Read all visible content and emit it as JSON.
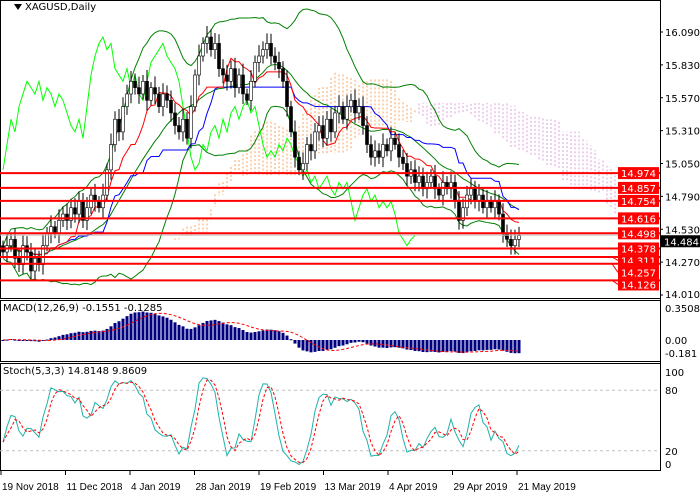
{
  "header": {
    "symbol_title": "XAGUSD,Daily"
  },
  "chart_data": [
    {
      "type": "candlestick",
      "title": "XAGUSD,Daily",
      "ylim": [
        14.01,
        16.09
      ],
      "y_ticks": [
        "16.090",
        "15.830",
        "15.570",
        "15.310",
        "15.050",
        "14.790",
        "14.530",
        "14.270",
        "14.010"
      ],
      "current_price": "14.484",
      "levels": [
        "14.974",
        "14.857",
        "14.754",
        "14.616",
        "14.498",
        "14.378",
        "14.311",
        "14.257",
        "14.126"
      ],
      "level_color": "#ff0000",
      "x_ticks": [
        "19 Nov 2018",
        "11 Dec 2018",
        "4 Jan 2019",
        "28 Jan 2019",
        "19 Feb 2019",
        "13 Mar 2019",
        "4 Apr 2019",
        "29 Apr 2019",
        "21 May 2019"
      ],
      "indicators": [
        "Bollinger Bands (green)",
        "Ichimoku cloud (orange/violet dotted)",
        "Tenkan (red)",
        "Kijun (blue)"
      ],
      "close": [
        14.35,
        14.4,
        14.45,
        14.3,
        14.25,
        14.4,
        14.35,
        14.2,
        14.3,
        14.25,
        14.4,
        14.5,
        14.55,
        14.5,
        14.6,
        14.65,
        14.6,
        14.7,
        14.65,
        14.75,
        14.6,
        14.7,
        14.8,
        14.75,
        14.7,
        14.8,
        15.0,
        15.2,
        15.4,
        15.3,
        15.5,
        15.6,
        15.7,
        15.65,
        15.6,
        15.7,
        15.55,
        15.65,
        15.6,
        15.5,
        15.6,
        15.55,
        15.45,
        15.35,
        15.3,
        15.4,
        15.25,
        15.5,
        15.75,
        15.9,
        16.0,
        16.05,
        15.95,
        16.0,
        15.8,
        15.75,
        15.7,
        15.8,
        15.65,
        15.75,
        15.6,
        15.55,
        15.7,
        15.85,
        15.9,
        15.95,
        16.0,
        15.9,
        15.85,
        15.8,
        15.7,
        15.5,
        15.3,
        15.1,
        15.0,
        15.05,
        15.2,
        15.15,
        15.3,
        15.35,
        15.25,
        15.4,
        15.3,
        15.45,
        15.5,
        15.4,
        15.5,
        15.55,
        15.45,
        15.5,
        15.35,
        15.2,
        15.1,
        15.15,
        15.1,
        15.2,
        15.15,
        15.25,
        15.2,
        15.1,
        15.05,
        14.95,
        15.0,
        14.9,
        14.95,
        14.85,
        14.9,
        14.95,
        14.85,
        14.8,
        14.9,
        14.85,
        14.9,
        14.75,
        14.6,
        14.7,
        14.8,
        14.85,
        14.75,
        14.8,
        14.7,
        14.75,
        14.7,
        14.75,
        14.65,
        14.5,
        14.45,
        14.4,
        14.45,
        14.48
      ]
    },
    {
      "type": "bar",
      "title": "MACD(12,26,9) -0.1551 -0.1285",
      "y_ticks": [
        "0.3508",
        "0.00",
        "-0.181"
      ],
      "ylim": [
        -0.181,
        0.3508
      ]
    },
    {
      "type": "line",
      "title": "Stoch(5,3,3) 14.8148 9.8609",
      "y_ticks": [
        "100",
        "80",
        "20",
        "0"
      ],
      "ylim": [
        0,
        100
      ]
    }
  ]
}
